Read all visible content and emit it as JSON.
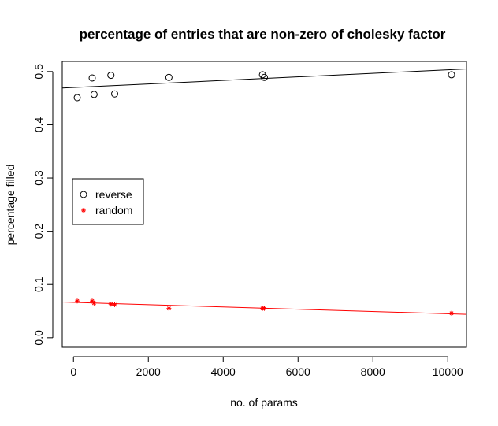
{
  "chart_data": {
    "type": "scatter",
    "title": "percentage of entries that are non-zero of cholesky factor",
    "xlabel": "no. of params",
    "ylabel": "percentage filled",
    "xlim": [
      -300,
      10500
    ],
    "ylim": [
      -0.018,
      0.519
    ],
    "x_ticks": [
      0,
      2000,
      4000,
      6000,
      8000,
      10000
    ],
    "x_tick_labels": [
      "0",
      "2000",
      "4000",
      "6000",
      "8000",
      "10000"
    ],
    "y_ticks": [
      0.0,
      0.1,
      0.2,
      0.3,
      0.4,
      0.5
    ],
    "y_tick_labels": [
      "0.0",
      "0.1",
      "0.2",
      "0.3",
      "0.4",
      "0.5"
    ],
    "grid": false,
    "legend_position": "left-middle",
    "series": [
      {
        "name": "reverse",
        "color": "#000000",
        "marker": "circle",
        "points": [
          {
            "x": 100,
            "y": 0.451
          },
          {
            "x": 500,
            "y": 0.488
          },
          {
            "x": 550,
            "y": 0.457
          },
          {
            "x": 1000,
            "y": 0.493
          },
          {
            "x": 1100,
            "y": 0.458
          },
          {
            "x": 2550,
            "y": 0.489
          },
          {
            "x": 5050,
            "y": 0.494
          },
          {
            "x": 5100,
            "y": 0.489
          },
          {
            "x": 10100,
            "y": 0.494
          }
        ],
        "fit_line": {
          "x0": -300,
          "y0": 0.469,
          "x1": 10500,
          "y1": 0.505
        }
      },
      {
        "name": "random",
        "color": "#ff0000",
        "marker": "asterisk",
        "points": [
          {
            "x": 100,
            "y": 0.069
          },
          {
            "x": 500,
            "y": 0.069
          },
          {
            "x": 550,
            "y": 0.065
          },
          {
            "x": 1000,
            "y": 0.063
          },
          {
            "x": 1100,
            "y": 0.062
          },
          {
            "x": 2550,
            "y": 0.055
          },
          {
            "x": 5050,
            "y": 0.055
          },
          {
            "x": 5100,
            "y": 0.055
          },
          {
            "x": 10100,
            "y": 0.046
          }
        ],
        "fit_line": {
          "x0": -300,
          "y0": 0.067,
          "x1": 10500,
          "y1": 0.044
        }
      }
    ]
  }
}
